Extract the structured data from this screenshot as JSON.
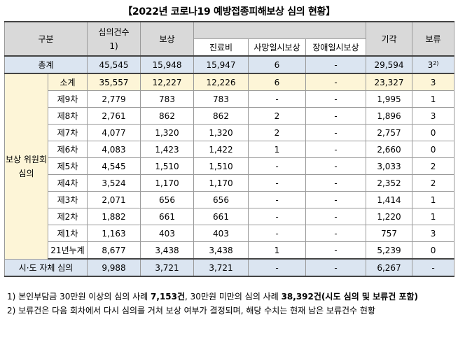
{
  "title": "【2022년 코로나19 예방접종피해보상 심의 현황】",
  "headers": {
    "category": "구분",
    "cases": "심의건수",
    "cases_note": "1)",
    "compensation": "보상",
    "medical": "진료비",
    "death": "사망일시보상",
    "disability": "장애일시보상",
    "rejected": "기각",
    "pending": "보류"
  },
  "total": {
    "label": "총계",
    "cases": "45,545",
    "compensation": "15,948",
    "medical": "15,947",
    "death": "6",
    "disability": "-",
    "rejected": "29,594",
    "pending": "3",
    "pending_note": "2)"
  },
  "committee": {
    "label": "보상 위원회 심의",
    "rows": [
      {
        "label": "소계",
        "cases": "35,557",
        "compensation": "12,227",
        "medical": "12,226",
        "death": "6",
        "disability": "-",
        "rejected": "23,327",
        "pending": "3"
      },
      {
        "label": "제9차",
        "cases": "2,779",
        "compensation": "783",
        "medical": "783",
        "death": "-",
        "disability": "-",
        "rejected": "1,995",
        "pending": "1"
      },
      {
        "label": "제8차",
        "cases": "2,761",
        "compensation": "862",
        "medical": "862",
        "death": "2",
        "disability": "-",
        "rejected": "1,896",
        "pending": "3"
      },
      {
        "label": "제7차",
        "cases": "4,077",
        "compensation": "1,320",
        "medical": "1,320",
        "death": "2",
        "disability": "-",
        "rejected": "2,757",
        "pending": "0"
      },
      {
        "label": "제6차",
        "cases": "4,083",
        "compensation": "1,423",
        "medical": "1,422",
        "death": "1",
        "disability": "-",
        "rejected": "2,660",
        "pending": "0"
      },
      {
        "label": "제5차",
        "cases": "4,545",
        "compensation": "1,510",
        "medical": "1,510",
        "death": "-",
        "disability": "-",
        "rejected": "3,033",
        "pending": "2"
      },
      {
        "label": "제4차",
        "cases": "3,524",
        "compensation": "1,170",
        "medical": "1,170",
        "death": "-",
        "disability": "-",
        "rejected": "2,352",
        "pending": "2"
      },
      {
        "label": "제3차",
        "cases": "2,071",
        "compensation": "656",
        "medical": "656",
        "death": "-",
        "disability": "-",
        "rejected": "1,414",
        "pending": "1"
      },
      {
        "label": "제2차",
        "cases": "1,882",
        "compensation": "661",
        "medical": "661",
        "death": "-",
        "disability": "-",
        "rejected": "1,220",
        "pending": "1"
      },
      {
        "label": "제1차",
        "cases": "1,163",
        "compensation": "403",
        "medical": "403",
        "death": "-",
        "disability": "-",
        "rejected": "757",
        "pending": "3"
      },
      {
        "label": "21년누계",
        "cases": "8,677",
        "compensation": "3,438",
        "medical": "3,438",
        "death": "1",
        "disability": "-",
        "rejected": "5,239",
        "pending": "0"
      }
    ]
  },
  "sido": {
    "label": "시·도 자체 심의",
    "cases": "9,988",
    "compensation": "3,721",
    "medical": "3,721",
    "death": "-",
    "disability": "-",
    "rejected": "6,267",
    "pending": "-"
  },
  "notes": {
    "note1_a": "1) 본인부담금 30만원 이상의 심의 사례 ",
    "note1_b": "7,153건",
    "note1_c": ", 30만원 미만의 심의 사례 ",
    "note1_d": "38,392건(시도 심의 및 보류건 포함)",
    "note2": "2) 보류건은 다음 회차에서 다시 심의를 거쳐 보상 여부가 결정되며, 해당 수치는 현재 남은 보류건수 현황"
  }
}
